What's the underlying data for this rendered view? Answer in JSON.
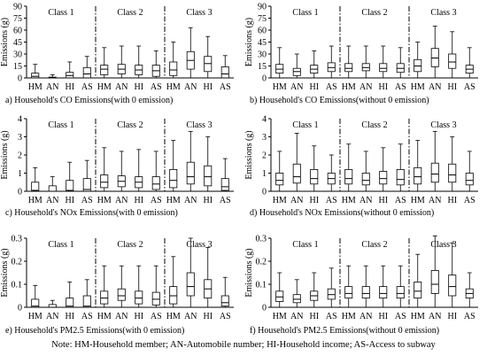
{
  "figure": {
    "note": "Note: HM-Household member; AN-Automobile number; HI-Household income; AS-Access to subway"
  },
  "chart_data": [
    {
      "type": "boxplot",
      "caption": "a) Household's CO Emissions(with 0 emission)",
      "ylabel": "Emissions (g)",
      "ylim": [
        0,
        90
      ],
      "yticks": [
        "0",
        "15",
        "30",
        "45",
        "60",
        "75",
        "90"
      ],
      "class_labels": [
        "Class 1",
        "Class 2",
        "Class 3"
      ],
      "categories": [
        "HM",
        "AN",
        "HI",
        "AS"
      ],
      "series": [
        {
          "name": "Class 1",
          "boxes": [
            [
              0,
              0,
              2,
              6,
              17
            ],
            [
              0,
              0,
              0,
              1,
              4
            ],
            [
              0,
              0,
              3,
              7,
              20
            ],
            [
              0,
              0,
              5,
              13,
              27
            ]
          ]
        },
        {
          "name": "Class 2",
          "boxes": [
            [
              0,
              4,
              11,
              16,
              38
            ],
            [
              0,
              5,
              11,
              17,
              40
            ],
            [
              0,
              4,
              10,
              16,
              40
            ],
            [
              0,
              2,
              9,
              16,
              34
            ]
          ]
        },
        {
          "name": "Class 3",
          "boxes": [
            [
              0,
              3,
              10,
              20,
              45
            ],
            [
              0,
              11,
              22,
              33,
              63
            ],
            [
              0,
              8,
              18,
              27,
              52
            ],
            [
              0,
              0,
              5,
              14,
              28
            ]
          ]
        }
      ]
    },
    {
      "type": "boxplot",
      "caption": "b) Household's CO Emissions(without 0 emission)",
      "ylabel": "Emissions (g)",
      "ylim": [
        0,
        90
      ],
      "yticks": [
        "0",
        "15",
        "30",
        "45",
        "60",
        "75",
        "90"
      ],
      "class_labels": [
        "Class 1",
        "Class 2",
        "Class 3"
      ],
      "categories": [
        "HM",
        "AN",
        "HI",
        "AS"
      ],
      "series": [
        {
          "name": "Class 1",
          "boxes": [
            [
              0,
              6,
              11,
              17,
              38
            ],
            [
              0,
              3,
              8,
              12,
              30
            ],
            [
              0,
              6,
              11,
              16,
              34
            ],
            [
              0,
              8,
              13,
              19,
              40
            ]
          ]
        },
        {
          "name": "Class 2",
          "boxes": [
            [
              0,
              8,
              12,
              18,
              40
            ],
            [
              0,
              9,
              13,
              18,
              40
            ],
            [
              0,
              8,
              12,
              18,
              40
            ],
            [
              0,
              7,
              12,
              18,
              38
            ]
          ]
        },
        {
          "name": "Class 3",
          "boxes": [
            [
              0,
              8,
              15,
              23,
              45
            ],
            [
              0,
              14,
              25,
              37,
              65
            ],
            [
              0,
              12,
              20,
              30,
              58
            ],
            [
              0,
              6,
              11,
              16,
              38
            ]
          ]
        }
      ]
    },
    {
      "type": "boxplot",
      "caption": "c) Household's NOx   Emissions(with 0 emission)",
      "ylabel": "Emissions (g)",
      "ylim": [
        0,
        4
      ],
      "yticks": [
        "0",
        "1",
        "2",
        "3",
        "4"
      ],
      "class_labels": [
        "Class 1",
        "Class 2",
        "Class 3"
      ],
      "categories": [
        "HM",
        "AN",
        "HI",
        "AS"
      ],
      "series": [
        {
          "name": "Class 1",
          "boxes": [
            [
              0,
              0,
              0.05,
              0.5,
              1.3
            ],
            [
              0,
              0,
              0,
              0.3,
              0.8
            ],
            [
              0,
              0,
              0.05,
              0.6,
              1.6
            ],
            [
              0,
              0,
              0.1,
              0.7,
              1.7
            ]
          ]
        },
        {
          "name": "Class 2",
          "boxes": [
            [
              0,
              0.2,
              0.5,
              0.9,
              2.4
            ],
            [
              0,
              0.25,
              0.55,
              0.85,
              2.2
            ],
            [
              0,
              0.2,
              0.5,
              0.8,
              2.3
            ],
            [
              0,
              0.1,
              0.4,
              0.8,
              2.2
            ]
          ]
        },
        {
          "name": "Class 3",
          "boxes": [
            [
              0,
              0.2,
              0.6,
              1.2,
              2.8
            ],
            [
              0,
              0.4,
              0.8,
              1.6,
              3.3
            ],
            [
              0,
              0.3,
              0.8,
              1.4,
              3.0
            ],
            [
              0,
              0.05,
              0.25,
              0.7,
              1.8
            ]
          ]
        }
      ]
    },
    {
      "type": "boxplot",
      "caption": "d) Household's NOx   Emissions(without 0 emission)",
      "ylabel": "Emissions (g)",
      "ylim": [
        0,
        4
      ],
      "yticks": [
        "0",
        "1",
        "2",
        "3",
        "4"
      ],
      "class_labels": [
        "Class 1",
        "Class 2",
        "Class 3"
      ],
      "categories": [
        "HM",
        "AN",
        "HI",
        "AS"
      ],
      "series": [
        {
          "name": "Class 1",
          "boxes": [
            [
              0,
              0.35,
              0.6,
              1.0,
              2.2
            ],
            [
              0,
              0.45,
              0.8,
              1.5,
              3.2
            ],
            [
              0,
              0.4,
              0.7,
              1.2,
              2.5
            ],
            [
              0,
              0.4,
              0.7,
              1.0,
              2.0
            ]
          ]
        },
        {
          "name": "Class 2",
          "boxes": [
            [
              0,
              0.4,
              0.7,
              1.2,
              2.6
            ],
            [
              0,
              0.35,
              0.6,
              1.0,
              2.2
            ],
            [
              0,
              0.4,
              0.7,
              1.1,
              2.4
            ],
            [
              0,
              0.35,
              0.65,
              1.2,
              2.6
            ]
          ]
        },
        {
          "name": "Class 3",
          "boxes": [
            [
              0,
              0.4,
              0.8,
              1.3,
              2.8
            ],
            [
              0,
              0.5,
              0.95,
              1.55,
              3.3
            ],
            [
              0,
              0.5,
              0.9,
              1.5,
              3.0
            ],
            [
              0,
              0.35,
              0.6,
              1.0,
              2.2
            ]
          ]
        }
      ]
    },
    {
      "type": "boxplot",
      "caption": "e) Household's PM2.5 Emissions(with 0 emission)",
      "ylabel": "Emissions (g)",
      "ylim": [
        0,
        0.3
      ],
      "yticks": [
        "0",
        "0.1",
        "0.2",
        "0.3"
      ],
      "class_labels": [
        "Class 1",
        "Class 2",
        "Class 3"
      ],
      "categories": [
        "HM",
        "AN",
        "HI",
        "AS"
      ],
      "series": [
        {
          "name": "Class 1",
          "boxes": [
            [
              0,
              0,
              0.005,
              0.035,
              0.095
            ],
            [
              0,
              0,
              0,
              0.012,
              0.03
            ],
            [
              0,
              0,
              0.005,
              0.04,
              0.11
            ],
            [
              0,
              0,
              0.005,
              0.05,
              0.12
            ]
          ]
        },
        {
          "name": "Class 2",
          "boxes": [
            [
              0,
              0.015,
              0.04,
              0.07,
              0.18
            ],
            [
              0,
              0.03,
              0.05,
              0.08,
              0.18
            ],
            [
              0,
              0.015,
              0.04,
              0.07,
              0.18
            ],
            [
              0,
              0.01,
              0.035,
              0.065,
              0.18
            ]
          ]
        },
        {
          "name": "Class 3",
          "boxes": [
            [
              0,
              0.015,
              0.05,
              0.09,
              0.22
            ],
            [
              0,
              0.05,
              0.09,
              0.15,
              0.3
            ],
            [
              0,
              0.04,
              0.08,
              0.12,
              0.26
            ],
            [
              0,
              0.005,
              0.02,
              0.05,
              0.13
            ]
          ]
        }
      ]
    },
    {
      "type": "boxplot",
      "caption": "f) Household's PM2.5 Emissions(without 0 emission)",
      "ylabel": "Emissions (g)",
      "ylim": [
        0,
        0.3
      ],
      "yticks": [
        "0",
        "0.1",
        "0.2",
        "0.3"
      ],
      "class_labels": [
        "Class 1",
        "Class 2",
        "Class 3"
      ],
      "categories": [
        "HM",
        "AN",
        "HI",
        "AS"
      ],
      "series": [
        {
          "name": "Class 1",
          "boxes": [
            [
              0,
              0.025,
              0.045,
              0.07,
              0.15
            ],
            [
              0,
              0.02,
              0.035,
              0.055,
              0.12
            ],
            [
              0,
              0.03,
              0.05,
              0.07,
              0.15
            ],
            [
              0,
              0.035,
              0.055,
              0.08,
              0.17
            ]
          ]
        },
        {
          "name": "Class 2",
          "boxes": [
            [
              0,
              0.04,
              0.06,
              0.09,
              0.18
            ],
            [
              0,
              0.04,
              0.06,
              0.09,
              0.18
            ],
            [
              0,
              0.04,
              0.06,
              0.09,
              0.18
            ],
            [
              0,
              0.04,
              0.06,
              0.09,
              0.18
            ]
          ]
        },
        {
          "name": "Class 3",
          "boxes": [
            [
              0,
              0.04,
              0.07,
              0.11,
              0.23
            ],
            [
              0,
              0.06,
              0.1,
              0.16,
              0.31
            ],
            [
              0,
              0.05,
              0.09,
              0.14,
              0.28
            ],
            [
              0,
              0.04,
              0.06,
              0.08,
              0.15
            ]
          ]
        }
      ]
    }
  ]
}
